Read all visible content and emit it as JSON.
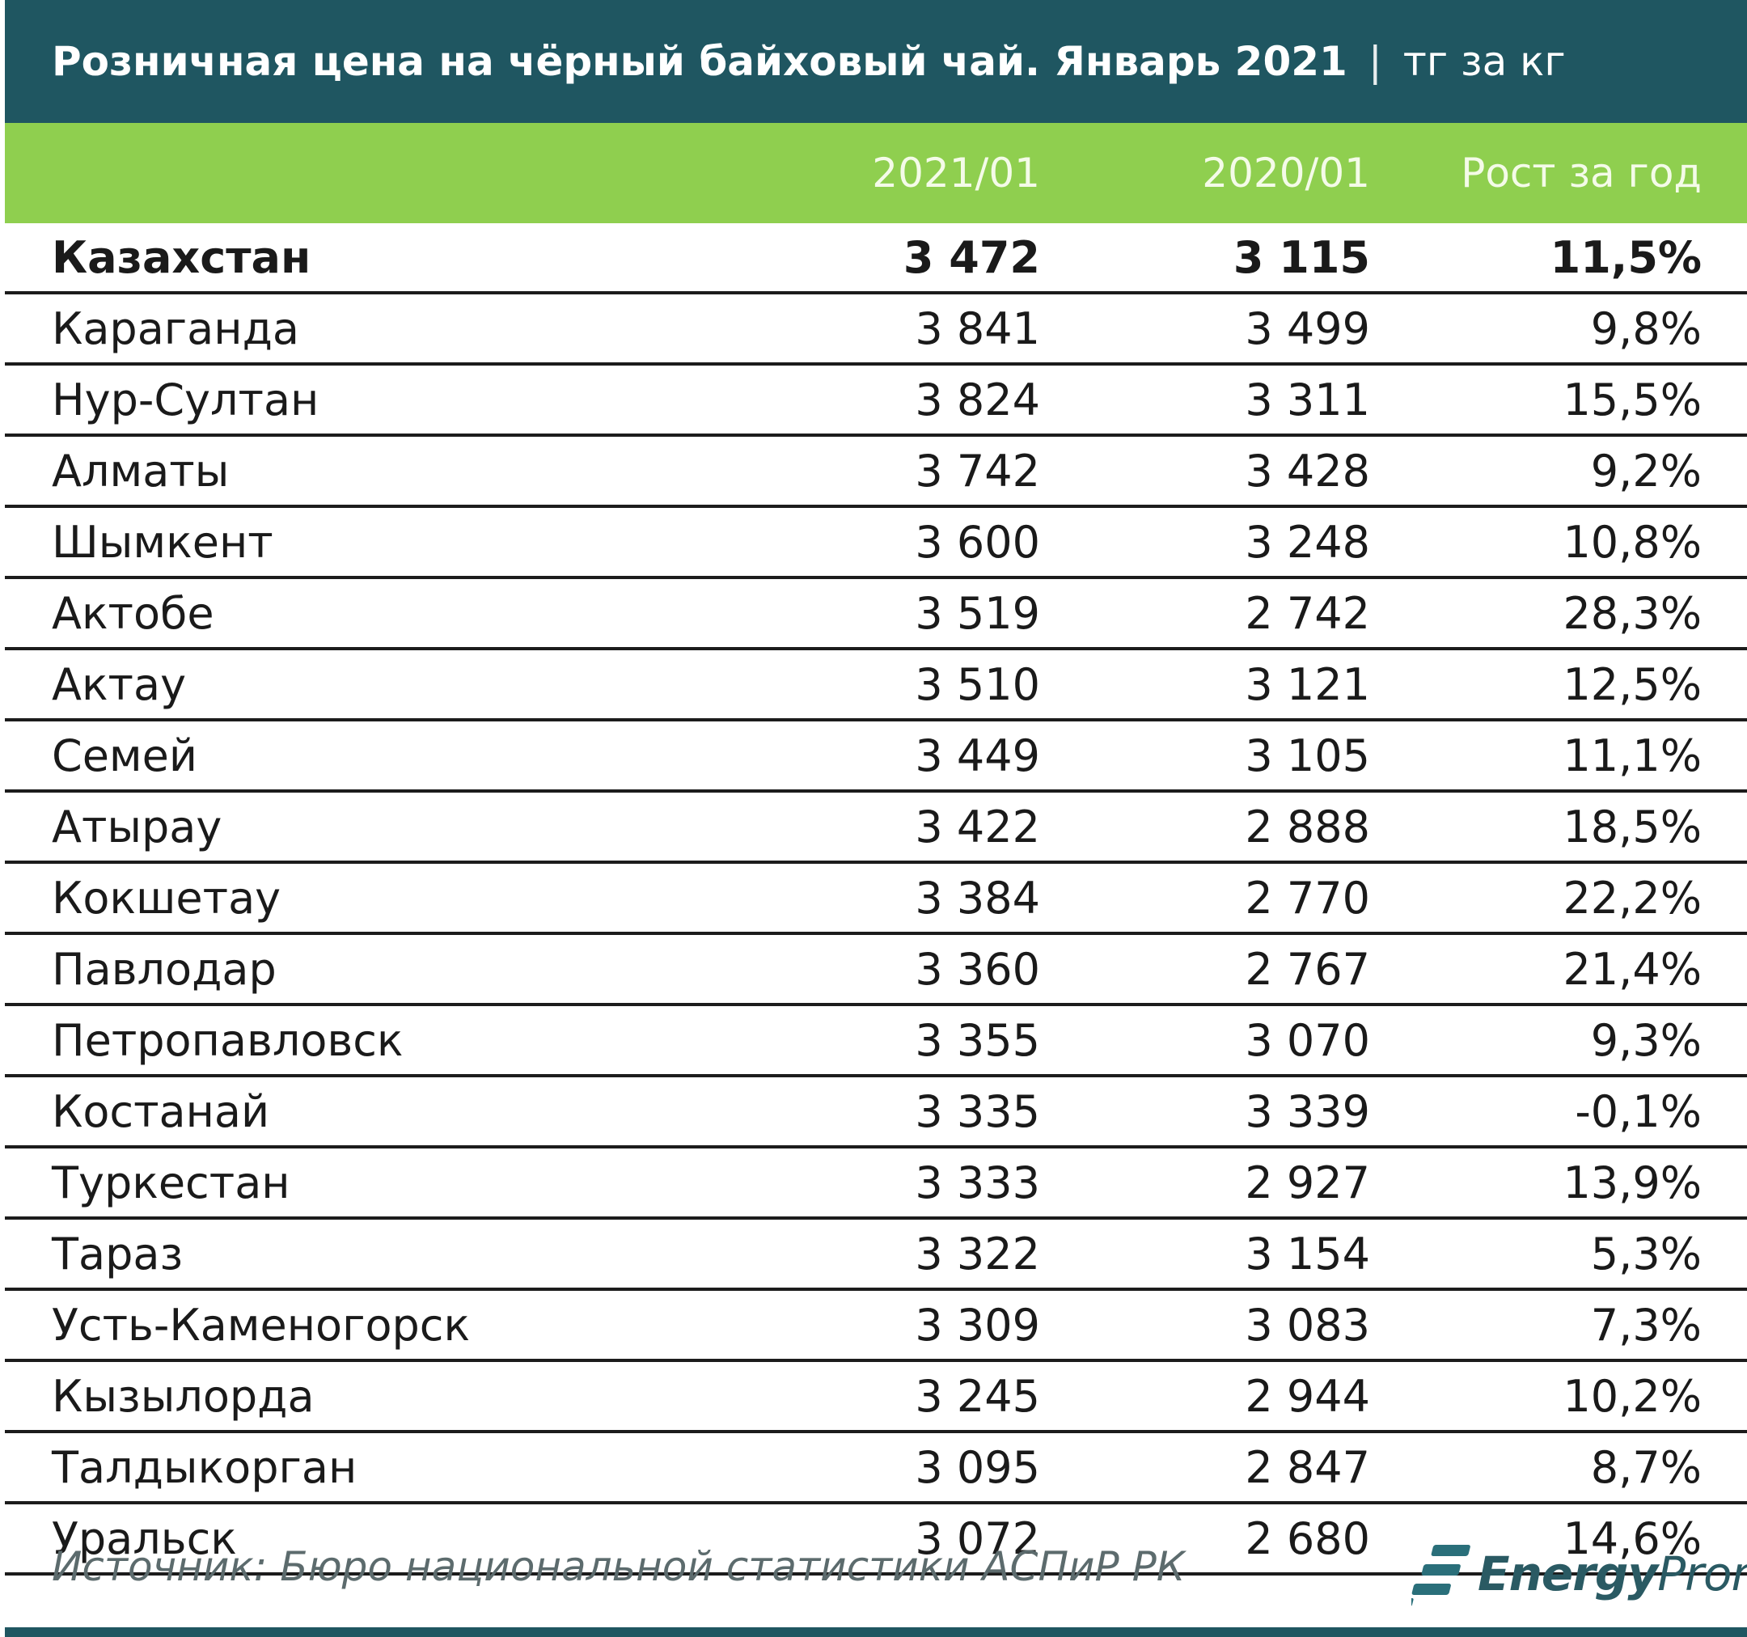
{
  "title": "Розничная цена на чёрный байховый чай. Январь 2021",
  "title_separator": "|",
  "unit": "тг за кг",
  "columns": [
    "2021/01",
    "2020/01",
    "Рост за год"
  ],
  "rows": [
    {
      "name": "Казахстан",
      "v2021": "3 472",
      "v2020": "3 115",
      "growth": "11,5%",
      "bold": true
    },
    {
      "name": "Караганда",
      "v2021": "3 841",
      "v2020": "3 499",
      "growth": "9,8%"
    },
    {
      "name": "Нур-Султан",
      "v2021": "3 824",
      "v2020": "3 311",
      "growth": "15,5%"
    },
    {
      "name": "Алматы",
      "v2021": "3 742",
      "v2020": "3 428",
      "growth": "9,2%"
    },
    {
      "name": "Шымкент",
      "v2021": "3 600",
      "v2020": "3 248",
      "growth": "10,8%"
    },
    {
      "name": "Актобе",
      "v2021": "3 519",
      "v2020": "2 742",
      "growth": "28,3%"
    },
    {
      "name": "Актау",
      "v2021": "3 510",
      "v2020": "3 121",
      "growth": "12,5%"
    },
    {
      "name": "Семей",
      "v2021": "3 449",
      "v2020": "3 105",
      "growth": "11,1%"
    },
    {
      "name": "Атырау",
      "v2021": "3 422",
      "v2020": "2 888",
      "growth": "18,5%"
    },
    {
      "name": "Кокшетау",
      "v2021": "3 384",
      "v2020": "2 770",
      "growth": "22,2%"
    },
    {
      "name": "Павлодар",
      "v2021": "3 360",
      "v2020": "2 767",
      "growth": "21,4%"
    },
    {
      "name": "Петропавловск",
      "v2021": "3 355",
      "v2020": "3 070",
      "growth": "9,3%"
    },
    {
      "name": "Костанай",
      "v2021": "3 335",
      "v2020": "3 339",
      "growth": "-0,1%"
    },
    {
      "name": "Туркестан",
      "v2021": "3 333",
      "v2020": "2 927",
      "growth": "13,9%"
    },
    {
      "name": "Тараз",
      "v2021": "3 322",
      "v2020": "3 154",
      "growth": "5,3%"
    },
    {
      "name": "Усть-Каменогорск",
      "v2021": "3 309",
      "v2020": "3 083",
      "growth": "7,3%"
    },
    {
      "name": "Кызылорда",
      "v2021": "3 245",
      "v2020": "2 944",
      "growth": "10,2%"
    },
    {
      "name": "Талдыкорган",
      "v2021": "3 095",
      "v2020": "2 847",
      "growth": "8,7%"
    },
    {
      "name": "Уральск",
      "v2021": "3 072",
      "v2020": "2 680",
      "growth": "14,6%"
    }
  ],
  "source": "Источник: Бюро национальной статистики АСПиР РК",
  "logo": {
    "text_bold": "Energy",
    "text_light": "Prom",
    "icon": "energyprom-logo-icon"
  },
  "colors": {
    "title_bg": "#1f5661",
    "header_bg": "#8fcf4f",
    "header_text": "#f4fbe8",
    "source_text": "#5c6b6d"
  },
  "chart_data": {
    "type": "table",
    "title": "Розничная цена на чёрный байховый чай. Январь 2021",
    "unit": "тг за кг",
    "columns": [
      "2021/01",
      "2020/01",
      "Рост за год"
    ],
    "categories": [
      "Казахстан",
      "Караганда",
      "Нур-Султан",
      "Алматы",
      "Шымкент",
      "Актобе",
      "Актау",
      "Семей",
      "Атырау",
      "Кокшетау",
      "Павлодар",
      "Петропавловск",
      "Костанай",
      "Туркестан",
      "Тараз",
      "Усть-Каменогорск",
      "Кызылорда",
      "Талдыкорган",
      "Уральск"
    ],
    "series": [
      {
        "name": "2021/01",
        "values": [
          3472,
          3841,
          3824,
          3742,
          3600,
          3519,
          3510,
          3449,
          3422,
          3384,
          3360,
          3355,
          3335,
          3333,
          3322,
          3309,
          3245,
          3095,
          3072
        ]
      },
      {
        "name": "2020/01",
        "values": [
          3115,
          3499,
          3311,
          3428,
          3248,
          2742,
          3121,
          3105,
          2888,
          2770,
          2767,
          3070,
          3339,
          2927,
          3154,
          3083,
          2944,
          2847,
          2680
        ]
      },
      {
        "name": "Рост за год",
        "values": [
          11.5,
          9.8,
          15.5,
          9.2,
          10.8,
          28.3,
          12.5,
          11.1,
          18.5,
          22.2,
          21.4,
          9.3,
          -0.1,
          13.9,
          5.3,
          7.3,
          10.2,
          8.7,
          14.6
        ]
      }
    ]
  }
}
